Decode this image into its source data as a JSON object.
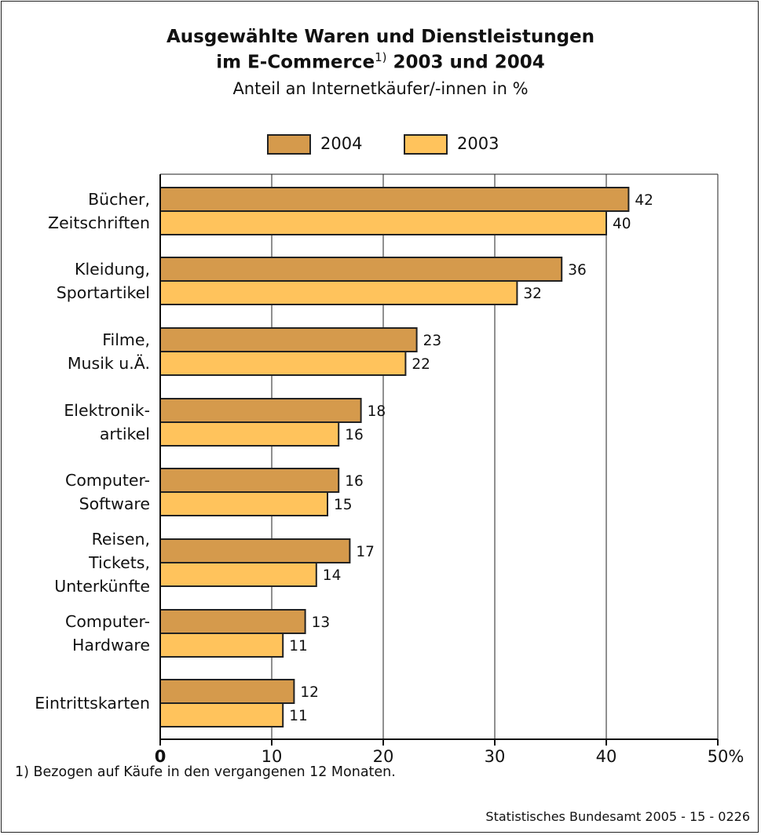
{
  "title_line1": "Ausgewählte Waren und Dienstleistungen",
  "title_line2_text": "im E-Commerce",
  "title_line2_sup": "1)",
  "title_line2_rest": " 2003 und 2004",
  "subtitle": "Anteil an Internetkäufer/-innen in %",
  "footnote": "1) Bezogen auf Käufe in den vergangenen 12 Monaten.",
  "source": "Statistisches Bundesamt 2005 - 15 - 0226",
  "colors": {
    "s2004": "#d59a4c",
    "s2003": "#ffc35c",
    "grid": "#222222"
  },
  "chart_data": {
    "type": "bar",
    "orientation": "horizontal",
    "title": "Ausgewählte Waren und Dienstleistungen im E-Commerce 2003 und 2004",
    "subtitle": "Anteil an Internetkäufer/-innen in %",
    "categories": [
      [
        "Bücher,",
        "Zeitschriften"
      ],
      [
        "Kleidung,",
        "Sportartikel"
      ],
      [
        "Filme,",
        "Musik u.Ä."
      ],
      [
        "Elektronik-",
        "artikel"
      ],
      [
        "Computer-",
        "Software"
      ],
      [
        "Reisen,",
        "Tickets,",
        "Unterkünfte"
      ],
      [
        "Computer-",
        "Hardware"
      ],
      [
        "Eintrittskarten"
      ]
    ],
    "series": [
      {
        "name": "2004",
        "values": [
          42,
          36,
          23,
          18,
          16,
          17,
          13,
          12
        ]
      },
      {
        "name": "2003",
        "values": [
          40,
          32,
          22,
          16,
          15,
          14,
          11,
          11
        ]
      }
    ],
    "xlim": [
      0,
      50
    ],
    "xticks": [
      "0",
      "10",
      "20",
      "30",
      "40",
      "50%"
    ],
    "legend": "top-center",
    "grid": true
  }
}
